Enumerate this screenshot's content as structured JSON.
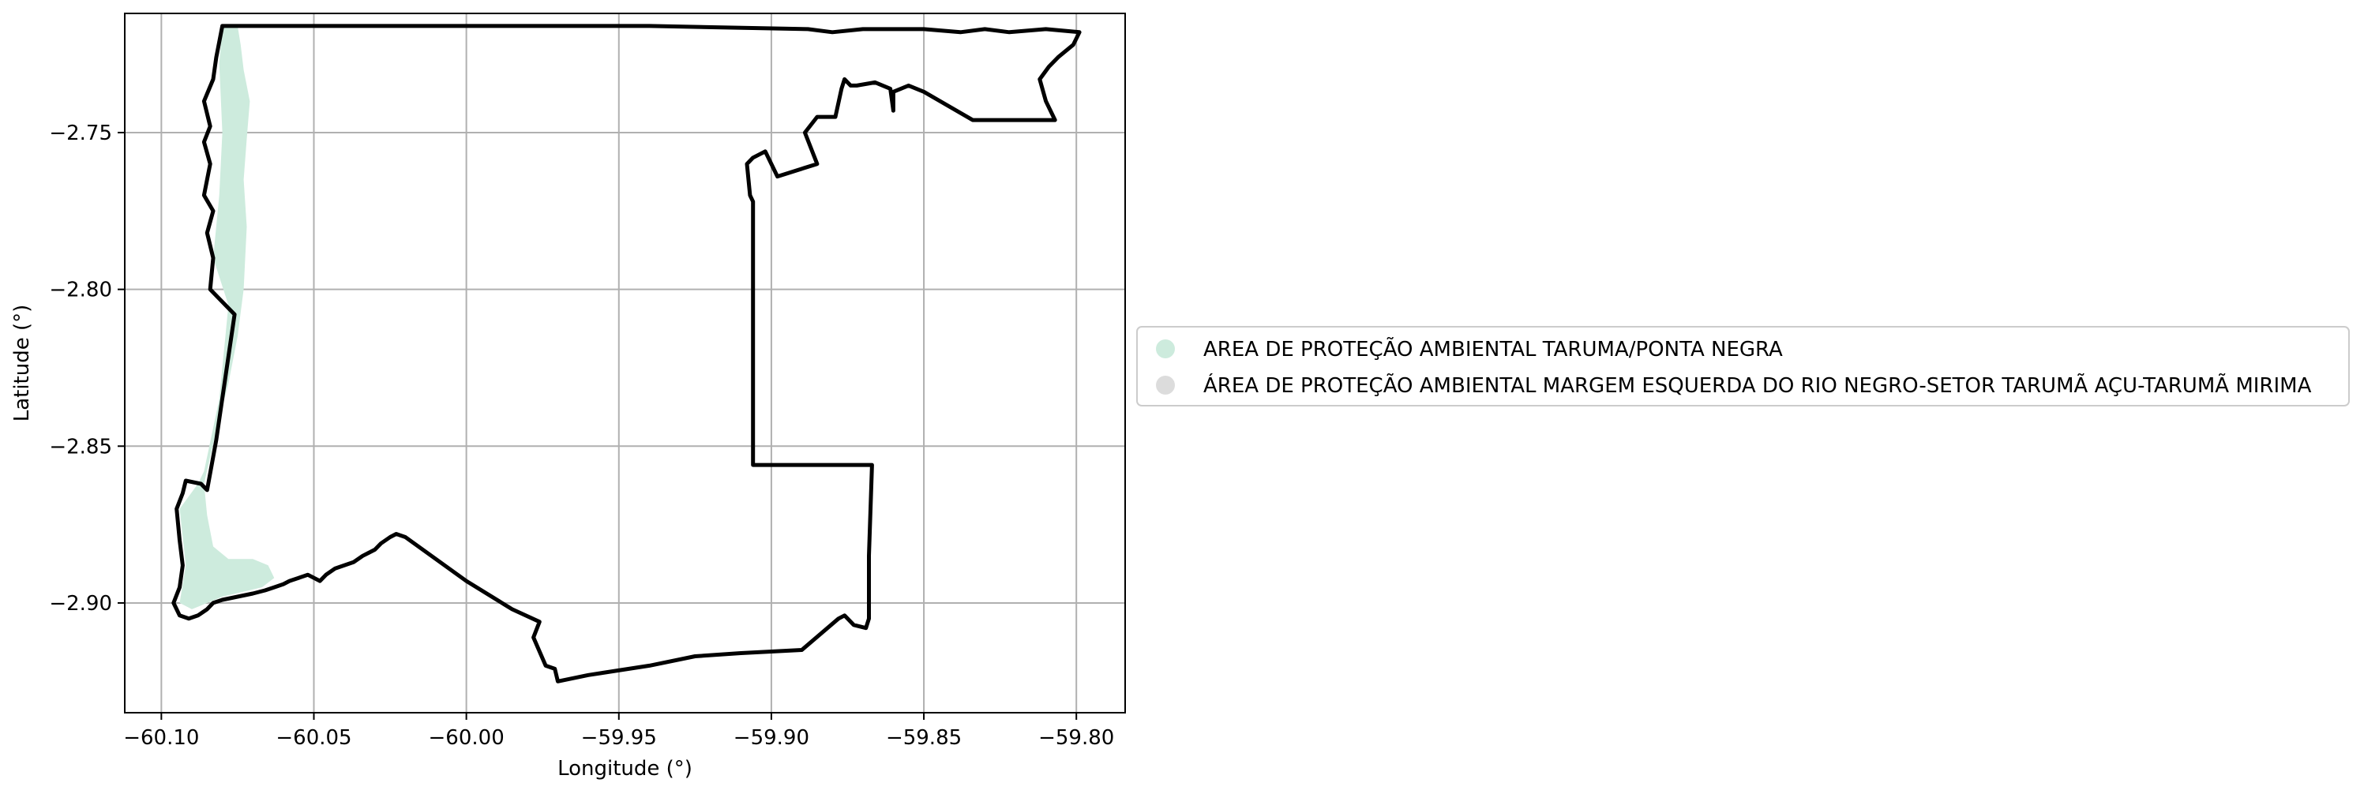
{
  "map": {
    "xlabel": "Longitude (°)",
    "ylabel": "Latitude (°)",
    "xlim": [
      -60.112,
      -59.784
    ],
    "ylim": [
      -2.935,
      -2.712
    ],
    "x_ticks": [
      -60.1,
      -60.05,
      -60.0,
      -59.95,
      -59.9,
      -59.85,
      -59.8
    ],
    "x_tick_labels": [
      "−60.10",
      "−60.05",
      "−60.00",
      "−59.95",
      "−59.90",
      "−59.85",
      "−59.80"
    ],
    "y_ticks": [
      -2.75,
      -2.8,
      -2.85,
      -2.9
    ],
    "y_tick_labels": [
      "−2.75",
      "−2.80",
      "−2.85",
      "−2.90"
    ],
    "grid": true,
    "legend_placement": "outside-right",
    "legend": [
      {
        "label": "AREA DE PROTEÇÃO AMBIENTAL TARUMA/PONTA NEGRA",
        "color": "#cdebdd"
      },
      {
        "label": "ÁREA DE PROTEÇÃO AMBIENTAL MARGEM ESQUERDA DO RIO NEGRO-SETOR TARUMÃ AÇU-TARUMÃ MIRIMA",
        "color": "#dcdcdc"
      }
    ],
    "features": [
      {
        "name": "AREA DE PROTEÇÃO AMBIENTAL TARUMA/PONTA NEGRA",
        "fill": "#cdebdd",
        "coordinates": [
          [
            -60.08,
            -2.716
          ],
          [
            -60.075,
            -2.716
          ],
          [
            -60.074,
            -2.722
          ],
          [
            -60.073,
            -2.73
          ],
          [
            -60.071,
            -2.74
          ],
          [
            -60.072,
            -2.752
          ],
          [
            -60.073,
            -2.765
          ],
          [
            -60.072,
            -2.78
          ],
          [
            -60.073,
            -2.8
          ],
          [
            -60.075,
            -2.815
          ],
          [
            -60.078,
            -2.83
          ],
          [
            -60.082,
            -2.845
          ],
          [
            -60.086,
            -2.862
          ],
          [
            -60.085,
            -2.872
          ],
          [
            -60.083,
            -2.882
          ],
          [
            -60.078,
            -2.886
          ],
          [
            -60.07,
            -2.886
          ],
          [
            -60.065,
            -2.888
          ],
          [
            -60.063,
            -2.892
          ],
          [
            -60.067,
            -2.895
          ],
          [
            -60.08,
            -2.898
          ],
          [
            -60.09,
            -2.902
          ],
          [
            -60.094,
            -2.9
          ],
          [
            -60.092,
            -2.888
          ],
          [
            -60.094,
            -2.87
          ],
          [
            -60.088,
            -2.862
          ],
          [
            -60.086,
            -2.858
          ],
          [
            -60.081,
            -2.835
          ],
          [
            -60.078,
            -2.805
          ],
          [
            -60.083,
            -2.79
          ],
          [
            -60.081,
            -2.77
          ],
          [
            -60.08,
            -2.75
          ],
          [
            -60.081,
            -2.728
          ]
        ]
      },
      {
        "name": "ÁREA DE PROTEÇÃO AMBIENTAL MARGEM ESQUERDA DO RIO NEGRO-SETOR TARUMÃ AÇU-TARUMÃ MIRIMA",
        "fill": "none",
        "stroke": "#000000",
        "coordinates": [
          [
            -60.08,
            -2.716
          ],
          [
            -59.94,
            -2.716
          ],
          [
            -59.888,
            -2.717
          ],
          [
            -59.88,
            -2.718
          ],
          [
            -59.87,
            -2.717
          ],
          [
            -59.85,
            -2.717
          ],
          [
            -59.838,
            -2.718
          ],
          [
            -59.83,
            -2.717
          ],
          [
            -59.822,
            -2.718
          ],
          [
            -59.81,
            -2.717
          ],
          [
            -59.799,
            -2.718
          ],
          [
            -59.801,
            -2.722
          ],
          [
            -59.806,
            -2.726
          ],
          [
            -59.809,
            -2.729
          ],
          [
            -59.812,
            -2.733
          ],
          [
            -59.81,
            -2.74
          ],
          [
            -59.807,
            -2.746
          ],
          [
            -59.834,
            -2.746
          ],
          [
            -59.85,
            -2.737
          ],
          [
            -59.855,
            -2.735
          ],
          [
            -59.86,
            -2.737
          ],
          [
            -59.86,
            -2.743
          ],
          [
            -59.861,
            -2.736
          ],
          [
            -59.866,
            -2.734
          ],
          [
            -59.872,
            -2.735
          ],
          [
            -59.874,
            -2.735
          ],
          [
            -59.876,
            -2.733
          ],
          [
            -59.877,
            -2.736
          ],
          [
            -59.879,
            -2.745
          ],
          [
            -59.885,
            -2.745
          ],
          [
            -59.889,
            -2.75
          ],
          [
            -59.885,
            -2.76
          ],
          [
            -59.898,
            -2.764
          ],
          [
            -59.902,
            -2.756
          ],
          [
            -59.906,
            -2.758
          ],
          [
            -59.908,
            -2.76
          ],
          [
            -59.907,
            -2.77
          ],
          [
            -59.906,
            -2.772
          ],
          [
            -59.906,
            -2.81
          ],
          [
            -59.906,
            -2.856
          ],
          [
            -59.867,
            -2.856
          ],
          [
            -59.868,
            -2.885
          ],
          [
            -59.868,
            -2.905
          ],
          [
            -59.869,
            -2.908
          ],
          [
            -59.873,
            -2.907
          ],
          [
            -59.876,
            -2.904
          ],
          [
            -59.878,
            -2.905
          ],
          [
            -59.89,
            -2.915
          ],
          [
            -59.91,
            -2.916
          ],
          [
            -59.925,
            -2.917
          ],
          [
            -59.94,
            -2.92
          ],
          [
            -59.96,
            -2.923
          ],
          [
            -59.97,
            -2.925
          ],
          [
            -59.971,
            -2.921
          ],
          [
            -59.974,
            -2.92
          ],
          [
            -59.978,
            -2.911
          ],
          [
            -59.976,
            -2.906
          ],
          [
            -59.985,
            -2.902
          ],
          [
            -60.0,
            -2.893
          ],
          [
            -60.02,
            -2.879
          ],
          [
            -60.023,
            -2.878
          ],
          [
            -60.025,
            -2.879
          ],
          [
            -60.028,
            -2.881
          ],
          [
            -60.03,
            -2.883
          ],
          [
            -60.032,
            -2.884
          ],
          [
            -60.034,
            -2.885
          ],
          [
            -60.037,
            -2.887
          ],
          [
            -60.04,
            -2.888
          ],
          [
            -60.043,
            -2.889
          ],
          [
            -60.046,
            -2.891
          ],
          [
            -60.048,
            -2.893
          ],
          [
            -60.052,
            -2.891
          ],
          [
            -60.055,
            -2.892
          ],
          [
            -60.058,
            -2.893
          ],
          [
            -60.06,
            -2.894
          ],
          [
            -60.063,
            -2.895
          ],
          [
            -60.066,
            -2.896
          ],
          [
            -60.07,
            -2.897
          ],
          [
            -60.075,
            -2.898
          ],
          [
            -60.08,
            -2.899
          ],
          [
            -60.083,
            -2.9
          ],
          [
            -60.085,
            -2.902
          ],
          [
            -60.088,
            -2.904
          ],
          [
            -60.091,
            -2.905
          ],
          [
            -60.094,
            -2.904
          ],
          [
            -60.096,
            -2.9
          ],
          [
            -60.094,
            -2.895
          ],
          [
            -60.093,
            -2.888
          ],
          [
            -60.094,
            -2.88
          ],
          [
            -60.095,
            -2.87
          ],
          [
            -60.093,
            -2.865
          ],
          [
            -60.092,
            -2.861
          ],
          [
            -60.087,
            -2.862
          ],
          [
            -60.085,
            -2.864
          ],
          [
            -60.082,
            -2.848
          ],
          [
            -60.076,
            -2.808
          ],
          [
            -60.08,
            -2.804
          ],
          [
            -60.084,
            -2.8
          ],
          [
            -60.083,
            -2.79
          ],
          [
            -60.085,
            -2.782
          ],
          [
            -60.083,
            -2.775
          ],
          [
            -60.086,
            -2.77
          ],
          [
            -60.084,
            -2.76
          ],
          [
            -60.086,
            -2.753
          ],
          [
            -60.084,
            -2.748
          ],
          [
            -60.086,
            -2.74
          ],
          [
            -60.083,
            -2.733
          ],
          [
            -60.082,
            -2.726
          ],
          [
            -60.08,
            -2.716
          ]
        ]
      }
    ]
  }
}
